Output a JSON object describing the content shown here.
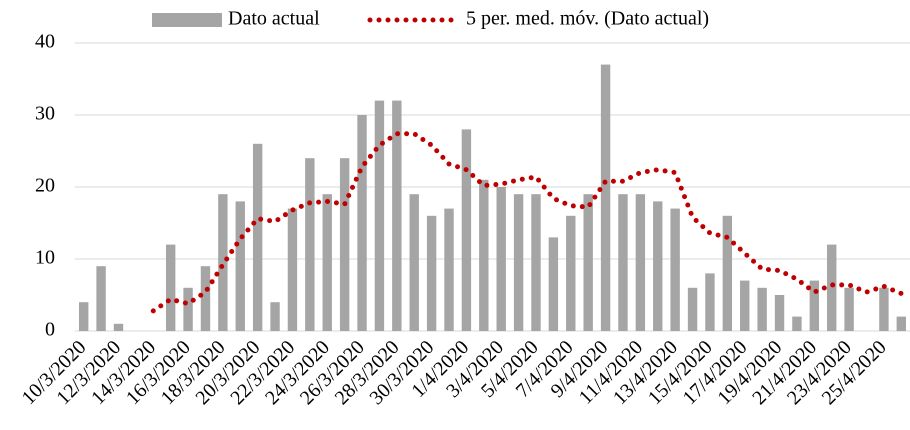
{
  "chart_data": {
    "type": "bar",
    "categories": [
      "10/3/2020",
      null,
      "12/3/2020",
      null,
      "14/3/2020",
      null,
      "16/3/2020",
      null,
      "18/3/2020",
      null,
      "20/3/2020",
      null,
      "22/3/2020",
      null,
      "24/3/2020",
      null,
      "26/3/2020",
      null,
      "28/3/2020",
      null,
      "30/3/2020",
      null,
      "1/4/2020",
      null,
      "3/4/2020",
      null,
      "5/4/2020",
      null,
      "7/4/2020",
      null,
      "9/4/2020",
      null,
      "11/4/2020",
      null,
      "13/4/2020",
      null,
      "15/4/2020",
      null,
      "17/4/2020",
      null,
      "19/4/2020",
      null,
      "21/4/2020",
      null,
      "23/4/2020",
      null,
      "25/4/2020",
      null
    ],
    "series": [
      {
        "name": "Dato actual",
        "type": "bar",
        "color": "#a5a5a5",
        "values": [
          4,
          9,
          1,
          0,
          0,
          12,
          6,
          9,
          19,
          18,
          26,
          4,
          17,
          24,
          19,
          24,
          30,
          32,
          32,
          19,
          16,
          17,
          28,
          21,
          20,
          19,
          19,
          13,
          16,
          19,
          37,
          19,
          19,
          18,
          17,
          6,
          8,
          16,
          7,
          6,
          5,
          2,
          7,
          12,
          6,
          0,
          6,
          2
        ]
      },
      {
        "name": "5 per. med. móv. (Dato actual)",
        "type": "line",
        "color": "#c00000",
        "values": [
          null,
          null,
          null,
          null,
          2.8,
          4.4,
          3.8,
          5.4,
          9.2,
          12.8,
          15.6,
          15.2,
          16.8,
          17.8,
          18,
          17.6,
          22.8,
          25.8,
          27.4,
          27.4,
          25.8,
          23.2,
          22.4,
          20.2,
          20.4,
          21,
          21.4,
          18.4,
          17.4,
          17.2,
          20.8,
          20.8,
          22,
          22.4,
          22,
          15.8,
          13.6,
          13,
          10.8,
          8.6,
          8.4,
          7.2,
          5.4,
          6.4,
          6.4,
          5.4,
          6.2,
          5.2
        ]
      }
    ],
    "ylim": [
      0,
      40
    ],
    "yticks": [
      0,
      10,
      20,
      30,
      40
    ],
    "grid": true,
    "legend": "top"
  }
}
